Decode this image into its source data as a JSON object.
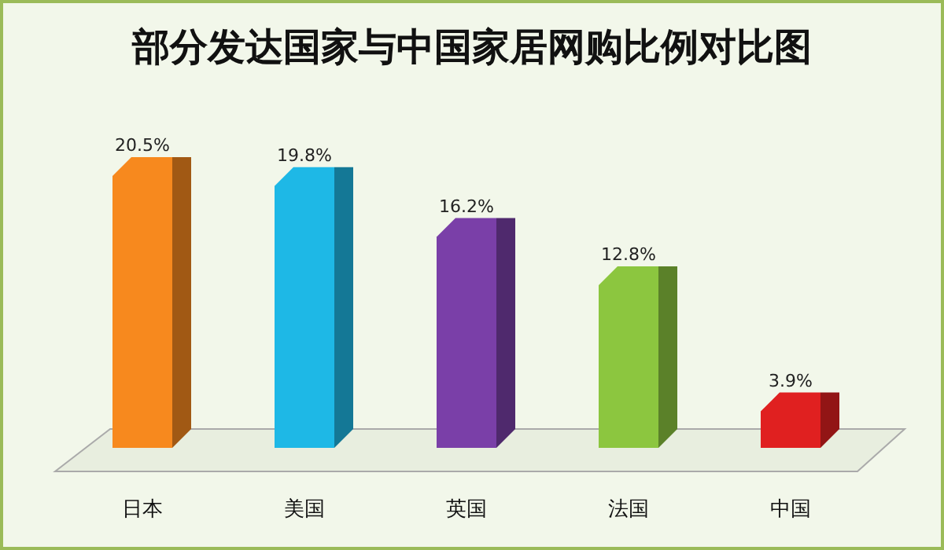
{
  "chart_data": {
    "type": "bar",
    "title": "部分发达国家与中国家居网购比例对比图",
    "categories": [
      "日本",
      "美国",
      "英国",
      "法国",
      "中国"
    ],
    "values": [
      20.5,
      19.8,
      16.2,
      12.8,
      3.9
    ],
    "colors": [
      "#f7891e",
      "#1eb8e6",
      "#7a3fa8",
      "#8cc63f",
      "#e02020"
    ],
    "data_labels": true,
    "value_labels": [
      "20.5%",
      "19.8%",
      "16.2%",
      "12.8%",
      "3.9%"
    ]
  }
}
